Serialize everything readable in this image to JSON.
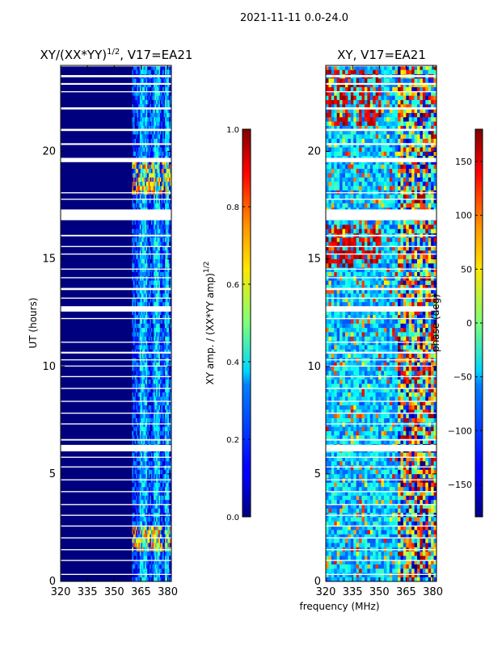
{
  "figure": {
    "suptitle": "2021-11-11 0.0-24.0",
    "shared_xlabel": "frequency (MHz)"
  },
  "chart_data": [
    {
      "type": "heatmap",
      "title": "XY/(XX*YY)",
      "title_sup": "1/2",
      "title_suffix": ", V17=EA21",
      "xlabel": "",
      "ylabel": "UT (hours)",
      "xlim": [
        320,
        382
      ],
      "ylim": [
        0,
        24
      ],
      "xticks": [
        320,
        335,
        350,
        365,
        380
      ],
      "yticks": [
        0,
        5,
        10,
        15,
        20
      ],
      "colorbar": {
        "label": "XY amp. / (XX*YY amp)",
        "label_sup": "1/2",
        "range": [
          0.0,
          1.0
        ],
        "ticks": [
          0.0,
          0.2,
          0.4,
          0.6,
          0.8,
          1.0
        ],
        "tick_labels": [
          "0.0",
          "0.2",
          "0.4",
          "0.6",
          "0.8",
          "1.0"
        ]
      },
      "active_band_MHz": [
        360,
        382
      ],
      "background_value": 0.0
    },
    {
      "type": "heatmap",
      "title": "XY, V17=EA21",
      "xlabel": "",
      "ylabel": "",
      "xlim": [
        320,
        382
      ],
      "ylim": [
        0,
        24
      ],
      "xticks": [
        320,
        335,
        350,
        365,
        380
      ],
      "yticks": [
        0,
        5,
        10,
        15,
        20
      ],
      "colorbar": {
        "label": "phase (deg)",
        "range": [
          -180,
          180
        ],
        "ticks": [
          -150,
          -100,
          -50,
          0,
          50,
          100,
          150
        ],
        "tick_labels": [
          "−150",
          "−100",
          "−50",
          "0",
          "50",
          "100",
          "150"
        ]
      },
      "active_band_MHz": [
        359,
        382
      ]
    }
  ],
  "colors": {
    "jet_dark_blue": "#00007f",
    "jet_blue": "#0000ff",
    "jet_cyan": "#00ffff",
    "jet_yellow": "#ffff00",
    "jet_red": "#ff0000",
    "jet_dark_red": "#7f0000"
  }
}
